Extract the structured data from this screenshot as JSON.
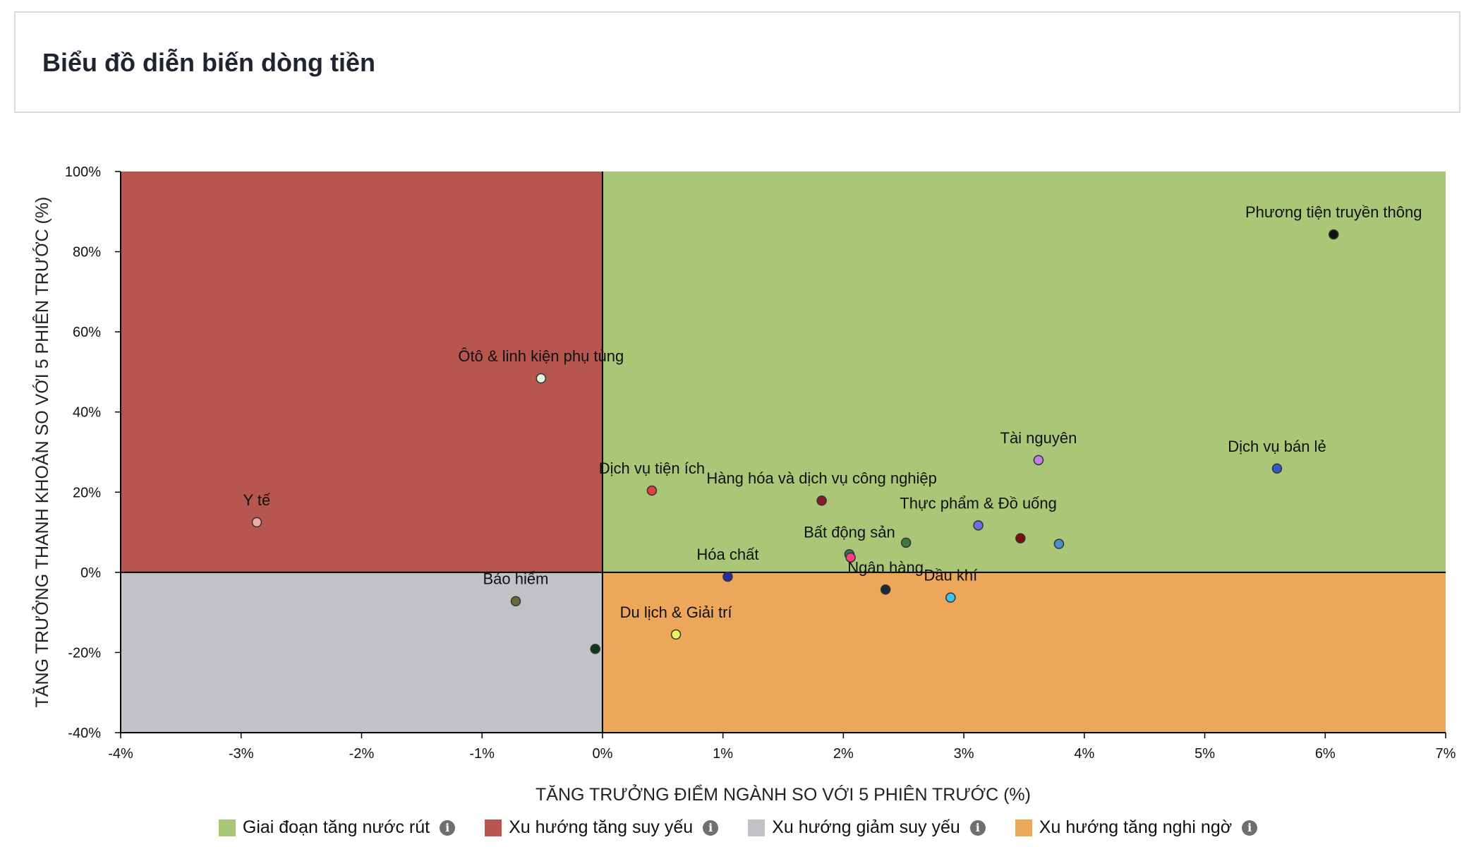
{
  "header": {
    "title": "Biểu đồ diễn biến dòng tiền"
  },
  "chart_data": {
    "type": "scatter",
    "title": "",
    "xlabel": "TĂNG TRƯỞNG ĐIỂM NGÀNH SO VỚI 5 PHIÊN TRƯỚC (%)",
    "ylabel": "TĂNG TRƯỞNG THANH KHOẢN SO VỚI 5 PHIÊN TRƯỚC (%)",
    "xlim": [
      -4,
      7
    ],
    "ylim": [
      -40,
      100
    ],
    "x_ticks": [
      -4,
      -3,
      -2,
      -1,
      0,
      1,
      2,
      3,
      4,
      5,
      6,
      7
    ],
    "x_tick_labels": [
      "-4%",
      "-3%",
      "-2%",
      "-1%",
      "0%",
      "1%",
      "2%",
      "3%",
      "4%",
      "5%",
      "6%",
      "7%"
    ],
    "y_ticks": [
      -40,
      -20,
      0,
      20,
      40,
      60,
      80,
      100
    ],
    "y_tick_labels": [
      "-40%",
      "-20%",
      "0%",
      "20%",
      "40%",
      "60%",
      "80%",
      "100%"
    ],
    "grid": false,
    "legend_position": "bottom",
    "quadrants": [
      {
        "name": "Giai đoạn tăng nước rút",
        "color": "#a9c776",
        "x_range": [
          0,
          7
        ],
        "y_range": [
          0,
          100
        ]
      },
      {
        "name": "Xu hướng tăng suy yếu",
        "color": "#b7554f",
        "x_range": [
          -4,
          0
        ],
        "y_range": [
          0,
          100
        ]
      },
      {
        "name": "Xu hướng giảm suy yếu",
        "color": "#c1c2c6",
        "x_range": [
          -4,
          0
        ],
        "y_range": [
          -40,
          0
        ]
      },
      {
        "name": "Xu hướng tăng nghi ngờ",
        "color": "#eca75b",
        "x_range": [
          0,
          7
        ],
        "y_range": [
          -40,
          0
        ]
      }
    ],
    "points": [
      {
        "label": "Phương tiện truyền thông",
        "x": 6.07,
        "y": 84.3,
        "color": "#111111",
        "show_label": true
      },
      {
        "label": "Ôtô & linh kiện phụ tùng",
        "x": -0.51,
        "y": 48.4,
        "color": "#e8f7e4",
        "show_label": true
      },
      {
        "label": "Tài nguyên",
        "x": 3.62,
        "y": 28.0,
        "color": "#c87be6",
        "show_label": true
      },
      {
        "label": "Dịch vụ bán lẻ",
        "x": 5.6,
        "y": 25.9,
        "color": "#3057c9",
        "show_label": true
      },
      {
        "label": "Dịch vụ tiện ích",
        "x": 0.41,
        "y": 20.4,
        "color": "#e04040",
        "show_label": true
      },
      {
        "label": "Hàng hóa và dịch vụ công nghiệp",
        "x": 1.82,
        "y": 17.9,
        "color": "#8a1a30",
        "show_label": true
      },
      {
        "label": "Y tế",
        "x": -2.87,
        "y": 12.5,
        "color": "#e8b0b0",
        "show_label": true
      },
      {
        "label": "Thực phẩm & Đồ uống",
        "x": 3.12,
        "y": 11.7,
        "color": "#6a70e0",
        "show_label": true
      },
      {
        "label": "",
        "x": 3.47,
        "y": 8.5,
        "color": "#7a1010",
        "show_label": false
      },
      {
        "label": "",
        "x": 3.79,
        "y": 7.1,
        "color": "#4a90c8",
        "show_label": false
      },
      {
        "label": "",
        "x": 2.52,
        "y": 7.4,
        "color": "#3d7a3d",
        "show_label": false
      },
      {
        "label": "Bất động sản",
        "x": 2.05,
        "y": 4.5,
        "color": "#2f7a5a",
        "show_label": true
      },
      {
        "label": "",
        "x": 2.06,
        "y": 3.7,
        "color": "#ff3f7a",
        "show_label": false
      },
      {
        "label": "Hóa chất",
        "x": 1.04,
        "y": -1.1,
        "color": "#2a2aa0",
        "show_label": true
      },
      {
        "label": "Ngân hàng",
        "x": 2.35,
        "y": -4.3,
        "color": "#1a2a3a",
        "show_label": true
      },
      {
        "label": "Dầu khí",
        "x": 2.89,
        "y": -6.3,
        "color": "#3fc4f0",
        "show_label": true
      },
      {
        "label": "Bảo hiểm",
        "x": -0.72,
        "y": -7.2,
        "color": "#6b6a3a",
        "show_label": true
      },
      {
        "label": "Du lịch & Giải trí",
        "x": 0.61,
        "y": -15.5,
        "color": "#f2f25a",
        "show_label": true
      },
      {
        "label": "",
        "x": -0.06,
        "y": -19.1,
        "color": "#0e3a16",
        "show_label": false
      }
    ]
  },
  "legend": {
    "items": [
      {
        "label": "Giai đoạn tăng nước rút",
        "color": "#a9c776"
      },
      {
        "label": "Xu hướng tăng suy yếu",
        "color": "#b7554f"
      },
      {
        "label": "Xu hướng giảm suy yếu",
        "color": "#c1c2c6"
      },
      {
        "label": "Xu hướng tăng nghi ngờ",
        "color": "#eca75b"
      }
    ],
    "info_glyph": "i"
  }
}
